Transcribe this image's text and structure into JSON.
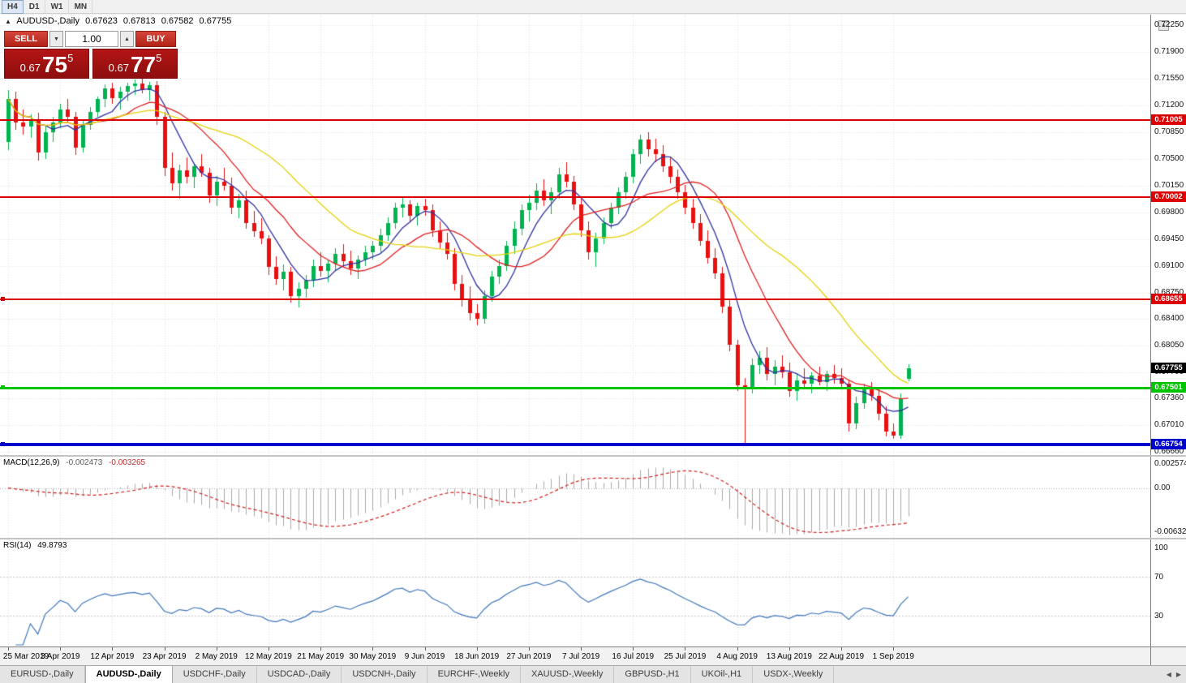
{
  "toolbar": {
    "timeframes": [
      {
        "label": "H4",
        "active": true
      },
      {
        "label": "D1",
        "active": false
      },
      {
        "label": "W1",
        "active": false
      },
      {
        "label": "MN",
        "active": false
      }
    ]
  },
  "symbol_bar": {
    "symbol": "AUDUSD-,Daily",
    "open": "0.67623",
    "high": "0.67813",
    "low": "0.67582",
    "close": "0.67755"
  },
  "icons": {
    "collapse": "▲",
    "volume_up": "▲",
    "volume_down": "▼",
    "tab_left": "◀",
    "tab_right": "▶",
    "corner": "▲"
  },
  "trade_panel": {
    "sell_label": "SELL",
    "buy_label": "BUY",
    "volume": "1.00",
    "sell_price_prefix": "0.67",
    "sell_price_big": "75",
    "sell_price_sup": "5",
    "buy_price_prefix": "0.67",
    "buy_price_big": "77",
    "buy_price_sup": "5"
  },
  "price_axis": {
    "labels": [
      "0.72250",
      "0.71900",
      "0.71550",
      "0.71200",
      "0.70850",
      "0.70500",
      "0.70150",
      "0.69800",
      "0.69450",
      "0.69100",
      "0.68750",
      "0.68400",
      "0.68050",
      "0.67700",
      "0.67360",
      "0.67010",
      "0.66660"
    ]
  },
  "macd": {
    "title": "MACD(12,26,9)",
    "value_main": "-0.002473",
    "value_signal": "-0.003265",
    "axis": [
      "0.002574",
      "0.00",
      "-0.006326"
    ]
  },
  "rsi": {
    "title": "RSI(14)",
    "value": "49.8793",
    "axis": [
      "100",
      "70",
      "30"
    ]
  },
  "tabs": [
    {
      "label": "EURUSD-,Daily",
      "active": false
    },
    {
      "label": "AUDUSD-,Daily",
      "active": true
    },
    {
      "label": "USDCHF-,Daily",
      "active": false
    },
    {
      "label": "USDCAD-,Daily",
      "active": false
    },
    {
      "label": "USDCNH-,Daily",
      "active": false
    },
    {
      "label": "EURCHF-,Weekly",
      "active": false
    },
    {
      "label": "XAUUSD-,Weekly",
      "active": false
    },
    {
      "label": "GBPUSD-,H1",
      "active": false
    },
    {
      "label": "UKOil-,H1",
      "active": false
    },
    {
      "label": "USDX-,Weekly",
      "active": false
    }
  ],
  "colors": {
    "bull": "#00b350",
    "bear": "#e81010",
    "grid": "#e2e2e2",
    "macd_hist": "#a8a8a8",
    "macd_signal": "#d02020",
    "rsi_line": "#3f76bb",
    "rsi_levels": "#c8c8c8"
  },
  "chart_data": {
    "type": "candlestick",
    "title": "AUDUSD-,Daily",
    "x_labels": [
      "25 Mar 2019",
      "3 Apr 2019",
      "12 Apr 2019",
      "23 Apr 2019",
      "2 May 2019",
      "12 May 2019",
      "21 May 2019",
      "30 May 2019",
      "9 Jun 2019",
      "18 Jun 2019",
      "27 Jun 2019",
      "7 Jul 2019",
      "16 Jul 2019",
      "25 Jul 2019",
      "4 Aug 2019",
      "13 Aug 2019",
      "22 Aug 2019",
      "1 Sep 2019"
    ],
    "x_label_every": 7,
    "y_top": 0.7239,
    "y_bottom": 0.6662,
    "candles": [
      [
        0.7072,
        0.714,
        0.7062,
        0.7128
      ],
      [
        0.7128,
        0.7138,
        0.7088,
        0.7098
      ],
      [
        0.7098,
        0.7115,
        0.7082,
        0.7092
      ],
      [
        0.7092,
        0.7108,
        0.7078,
        0.7102
      ],
      [
        0.7102,
        0.711,
        0.7048,
        0.7058
      ],
      [
        0.7058,
        0.7092,
        0.705,
        0.7085
      ],
      [
        0.7085,
        0.7105,
        0.7072,
        0.7098
      ],
      [
        0.7098,
        0.7122,
        0.709,
        0.7115
      ],
      [
        0.7115,
        0.7128,
        0.7098,
        0.7105
      ],
      [
        0.7105,
        0.7112,
        0.7055,
        0.7065
      ],
      [
        0.7065,
        0.71,
        0.7058,
        0.7095
      ],
      [
        0.7095,
        0.7118,
        0.7088,
        0.7112
      ],
      [
        0.7112,
        0.7132,
        0.7105,
        0.7128
      ],
      [
        0.7128,
        0.7148,
        0.7118,
        0.7142
      ],
      [
        0.7142,
        0.715,
        0.7122,
        0.713
      ],
      [
        0.713,
        0.7144,
        0.7115,
        0.7138
      ],
      [
        0.7138,
        0.715,
        0.7126,
        0.7146
      ],
      [
        0.7146,
        0.7154,
        0.7134,
        0.7149
      ],
      [
        0.7149,
        0.7156,
        0.7136,
        0.714
      ],
      [
        0.714,
        0.7151,
        0.7126,
        0.7147
      ],
      [
        0.7147,
        0.7152,
        0.7095,
        0.7105
      ],
      [
        0.7105,
        0.7112,
        0.7028,
        0.7038
      ],
      [
        0.7038,
        0.7058,
        0.7008,
        0.7018
      ],
      [
        0.7018,
        0.7042,
        0.6998,
        0.7035
      ],
      [
        0.7035,
        0.7052,
        0.7018,
        0.7026
      ],
      [
        0.7026,
        0.7045,
        0.7012,
        0.704
      ],
      [
        0.704,
        0.7056,
        0.7026,
        0.7032
      ],
      [
        0.7032,
        0.7038,
        0.6992,
        0.7002
      ],
      [
        0.7002,
        0.7028,
        0.6988,
        0.702
      ],
      [
        0.702,
        0.7038,
        0.7008,
        0.7015
      ],
      [
        0.7015,
        0.7025,
        0.6978,
        0.6986
      ],
      [
        0.6986,
        0.7004,
        0.6972,
        0.6996
      ],
      [
        0.6996,
        0.7008,
        0.6958,
        0.6966
      ],
      [
        0.6966,
        0.6982,
        0.6948,
        0.6955
      ],
      [
        0.6955,
        0.6972,
        0.6938,
        0.6946
      ],
      [
        0.6946,
        0.695,
        0.6898,
        0.6908
      ],
      [
        0.6908,
        0.6922,
        0.6885,
        0.6893
      ],
      [
        0.6893,
        0.6912,
        0.6878,
        0.6902
      ],
      [
        0.6902,
        0.6908,
        0.6862,
        0.687
      ],
      [
        0.687,
        0.6888,
        0.6855,
        0.688
      ],
      [
        0.688,
        0.6898,
        0.6868,
        0.689
      ],
      [
        0.689,
        0.6918,
        0.6882,
        0.691
      ],
      [
        0.691,
        0.6928,
        0.6896,
        0.6903
      ],
      [
        0.6903,
        0.6918,
        0.6888,
        0.6913
      ],
      [
        0.6913,
        0.6933,
        0.6903,
        0.6926
      ],
      [
        0.6926,
        0.6938,
        0.6908,
        0.6916
      ],
      [
        0.6916,
        0.693,
        0.6898,
        0.6906
      ],
      [
        0.6906,
        0.6923,
        0.6893,
        0.6918
      ],
      [
        0.6918,
        0.6936,
        0.691,
        0.6928
      ],
      [
        0.6928,
        0.6943,
        0.6918,
        0.6936
      ],
      [
        0.6936,
        0.6958,
        0.6928,
        0.695
      ],
      [
        0.695,
        0.6973,
        0.6943,
        0.6966
      ],
      [
        0.6966,
        0.6993,
        0.6958,
        0.6986
      ],
      [
        0.6986,
        0.6999,
        0.6973,
        0.699
      ],
      [
        0.699,
        0.6996,
        0.6968,
        0.6976
      ],
      [
        0.6976,
        0.6993,
        0.6963,
        0.6988
      ],
      [
        0.6988,
        0.6998,
        0.6976,
        0.6983
      ],
      [
        0.6983,
        0.699,
        0.6948,
        0.6956
      ],
      [
        0.6956,
        0.6968,
        0.6933,
        0.694
      ],
      [
        0.694,
        0.6953,
        0.6918,
        0.6926
      ],
      [
        0.6926,
        0.6933,
        0.6878,
        0.6886
      ],
      [
        0.6886,
        0.6898,
        0.6856,
        0.6866
      ],
      [
        0.6866,
        0.6883,
        0.6838,
        0.6848
      ],
      [
        0.6848,
        0.686,
        0.6832,
        0.684
      ],
      [
        0.684,
        0.6878,
        0.6834,
        0.687
      ],
      [
        0.687,
        0.6903,
        0.6863,
        0.6896
      ],
      [
        0.6896,
        0.6918,
        0.6886,
        0.691
      ],
      [
        0.691,
        0.6943,
        0.6903,
        0.6936
      ],
      [
        0.6936,
        0.6968,
        0.6926,
        0.6958
      ],
      [
        0.6958,
        0.699,
        0.695,
        0.6983
      ],
      [
        0.6983,
        0.7003,
        0.6968,
        0.6993
      ],
      [
        0.6993,
        0.7018,
        0.6983,
        0.7008
      ],
      [
        0.7008,
        0.7023,
        0.6988,
        0.6996
      ],
      [
        0.6996,
        0.7013,
        0.6978,
        0.7006
      ],
      [
        0.7006,
        0.7038,
        0.6998,
        0.703
      ],
      [
        0.703,
        0.7046,
        0.7013,
        0.702
      ],
      [
        0.702,
        0.7028,
        0.6983,
        0.699
      ],
      [
        0.699,
        0.6998,
        0.6948,
        0.6956
      ],
      [
        0.6956,
        0.6968,
        0.6918,
        0.6928
      ],
      [
        0.6928,
        0.6953,
        0.6908,
        0.6946
      ],
      [
        0.6946,
        0.6973,
        0.6938,
        0.6966
      ],
      [
        0.6966,
        0.6993,
        0.6958,
        0.6986
      ],
      [
        0.6986,
        0.7013,
        0.6978,
        0.7006
      ],
      [
        0.7006,
        0.7033,
        0.6998,
        0.7026
      ],
      [
        0.7026,
        0.7063,
        0.7018,
        0.7056
      ],
      [
        0.7056,
        0.7082,
        0.7043,
        0.7075
      ],
      [
        0.7075,
        0.7085,
        0.7053,
        0.7063
      ],
      [
        0.7063,
        0.7076,
        0.7046,
        0.7056
      ],
      [
        0.7056,
        0.7068,
        0.7033,
        0.704
      ],
      [
        0.704,
        0.7053,
        0.7018,
        0.7026
      ],
      [
        0.7026,
        0.7036,
        0.6998,
        0.7006
      ],
      [
        0.7006,
        0.7016,
        0.6978,
        0.6986
      ],
      [
        0.6986,
        0.6998,
        0.6958,
        0.6966
      ],
      [
        0.6966,
        0.6978,
        0.6936,
        0.6943
      ],
      [
        0.6943,
        0.6956,
        0.6913,
        0.692
      ],
      [
        0.692,
        0.6933,
        0.6893,
        0.69
      ],
      [
        0.69,
        0.6908,
        0.6848,
        0.6856
      ],
      [
        0.6856,
        0.6866,
        0.6798,
        0.6806
      ],
      [
        0.6806,
        0.6813,
        0.6746,
        0.6753
      ],
      [
        0.6753,
        0.6763,
        0.6677,
        0.675
      ],
      [
        0.675,
        0.6788,
        0.6743,
        0.678
      ],
      [
        0.678,
        0.6798,
        0.6768,
        0.679
      ],
      [
        0.679,
        0.6803,
        0.676,
        0.6768
      ],
      [
        0.6768,
        0.6786,
        0.6753,
        0.6778
      ],
      [
        0.6778,
        0.6793,
        0.6763,
        0.677
      ],
      [
        0.677,
        0.6783,
        0.6738,
        0.6746
      ],
      [
        0.6746,
        0.6768,
        0.6733,
        0.676
      ],
      [
        0.676,
        0.6776,
        0.6748,
        0.6756
      ],
      [
        0.6756,
        0.677,
        0.6743,
        0.6766
      ],
      [
        0.6766,
        0.6778,
        0.6753,
        0.6758
      ],
      [
        0.6758,
        0.6773,
        0.6746,
        0.6768
      ],
      [
        0.6768,
        0.678,
        0.6756,
        0.6763
      ],
      [
        0.6763,
        0.6776,
        0.6748,
        0.6756
      ],
      [
        0.6756,
        0.676,
        0.6693,
        0.6703
      ],
      [
        0.6703,
        0.6738,
        0.6696,
        0.673
      ],
      [
        0.673,
        0.6756,
        0.6723,
        0.6748
      ],
      [
        0.6748,
        0.6758,
        0.6733,
        0.674
      ],
      [
        0.674,
        0.675,
        0.6708,
        0.6716
      ],
      [
        0.6716,
        0.6726,
        0.6686,
        0.6693
      ],
      [
        0.6693,
        0.6703,
        0.6683,
        0.6688
      ],
      [
        0.6688,
        0.6743,
        0.6683,
        0.6736
      ],
      [
        0.67623,
        0.67813,
        0.67582,
        0.67755
      ]
    ],
    "overlays": [
      {
        "name": "ma-fast",
        "period": 6,
        "color": "#3030a0"
      },
      {
        "name": "ma-medium",
        "period": 13,
        "color": "#e02020"
      },
      {
        "name": "ma-slow",
        "period": 26,
        "color": "#e6d20a"
      }
    ],
    "hlines": [
      {
        "price": 0.71005,
        "label": "0.71005",
        "color": "#dd0000",
        "width": 2,
        "handle": false
      },
      {
        "price": 0.70002,
        "label": "0.70002",
        "color": "#dd0000",
        "width": 2,
        "handle": false
      },
      {
        "price": 0.68655,
        "label": "0.68655",
        "color": "#dd0000",
        "width": 2,
        "handle": true
      },
      {
        "price": 0.67501,
        "label": "0.67501",
        "color": "#00c400",
        "width": 3,
        "handle": true
      },
      {
        "price": 0.66754,
        "label": "0.66754",
        "color": "#0000cc",
        "width": 4,
        "handle": true
      }
    ],
    "current_price": {
      "price": 0.67755,
      "label": "0.67755",
      "color": "#000000"
    },
    "indicators": [
      {
        "name": "MACD",
        "params": "12,26,9",
        "values": "-0.002473 -0.003265"
      },
      {
        "name": "RSI",
        "params": "14",
        "value": "49.8793"
      }
    ]
  }
}
